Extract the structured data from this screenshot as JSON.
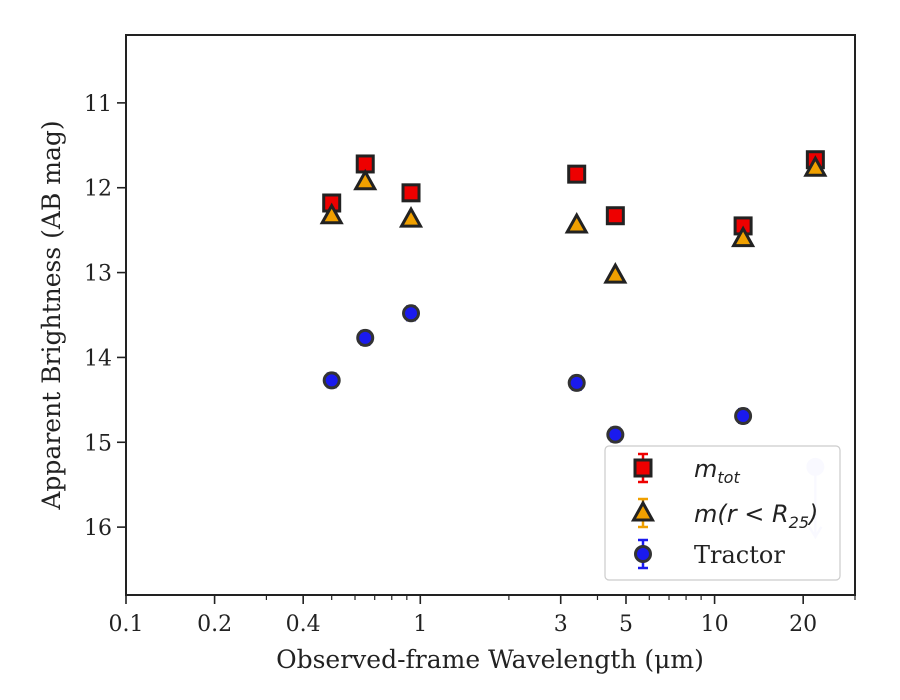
{
  "chart_data": {
    "type": "scatter",
    "xlabel": "Observed-frame Wavelength (μm)",
    "ylabel": "Apparent Brightness (AB mag)",
    "xscale": "log",
    "xlim": [
      0.1,
      30
    ],
    "ylim": [
      16.8,
      10.2
    ],
    "y_inverted": true,
    "x_ticks": [
      0.1,
      0.2,
      0.4,
      1,
      3,
      5,
      10,
      20
    ],
    "x_tick_labels": [
      "0.1",
      "0.2",
      "0.4",
      "1",
      "3",
      "5",
      "10",
      "20"
    ],
    "y_ticks": [
      11,
      12,
      13,
      14,
      15,
      16
    ],
    "y_tick_labels": [
      "11",
      "12",
      "13",
      "14",
      "15",
      "16"
    ],
    "grid": false,
    "legend_position": "lower-right",
    "x": [
      0.5,
      0.65,
      0.93,
      3.4,
      4.6,
      12.5,
      22.0
    ],
    "series": [
      {
        "name": "m_tot",
        "legend_main": "m",
        "legend_sub": "tot",
        "marker": "square",
        "color": "#ee0000",
        "edge": "#222222",
        "values": [
          12.18,
          11.72,
          12.06,
          11.84,
          12.33,
          12.45,
          11.67
        ],
        "errors": [
          0.03,
          0.03,
          0.03,
          0.03,
          0.03,
          0.03,
          0.05
        ]
      },
      {
        "name": "m(r < R25)",
        "legend_main": "m(r < R",
        "legend_sub": "25",
        "legend_tail": ")",
        "marker": "triangle",
        "color": "#f0a000",
        "edge": "#222222",
        "values": [
          12.33,
          11.93,
          12.37,
          12.44,
          13.03,
          12.6,
          11.77
        ],
        "errors": [
          0.02,
          0.02,
          0.02,
          0.02,
          0.02,
          0.02,
          0.02
        ]
      },
      {
        "name": "Tractor",
        "legend_main": "Tractor",
        "marker": "circle",
        "color": "#1a1aee",
        "edge": "#333333",
        "values": [
          14.27,
          13.77,
          13.48,
          14.3,
          14.91,
          14.69,
          15.29
        ],
        "errors": [
          0.08,
          0.08,
          0.08,
          0.08,
          0.08,
          0.08,
          0.0
        ],
        "upper_limit_index": 6
      }
    ]
  }
}
